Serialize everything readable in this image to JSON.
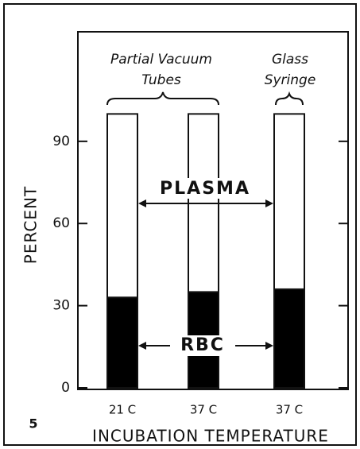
{
  "chart_data": {
    "type": "stacked_bar",
    "categories": [
      "21 C",
      "37 C",
      "37 C"
    ],
    "series": [
      {
        "name": "RBC",
        "color": "#000000",
        "values": [
          33,
          35,
          36
        ]
      },
      {
        "name": "PLASMA",
        "color": "#ffffff",
        "values": [
          67,
          65,
          64
        ]
      }
    ],
    "ylim": [
      0,
      130
    ],
    "yticks": [
      0,
      30,
      60,
      90
    ],
    "y_label": "PERCENT",
    "x_label": "INCUBATION TEMPERATURE",
    "annotations": [
      "Partial Vacuum",
      "Tubes",
      "Glass",
      "Syringe"
    ],
    "figure_label": "5"
  }
}
